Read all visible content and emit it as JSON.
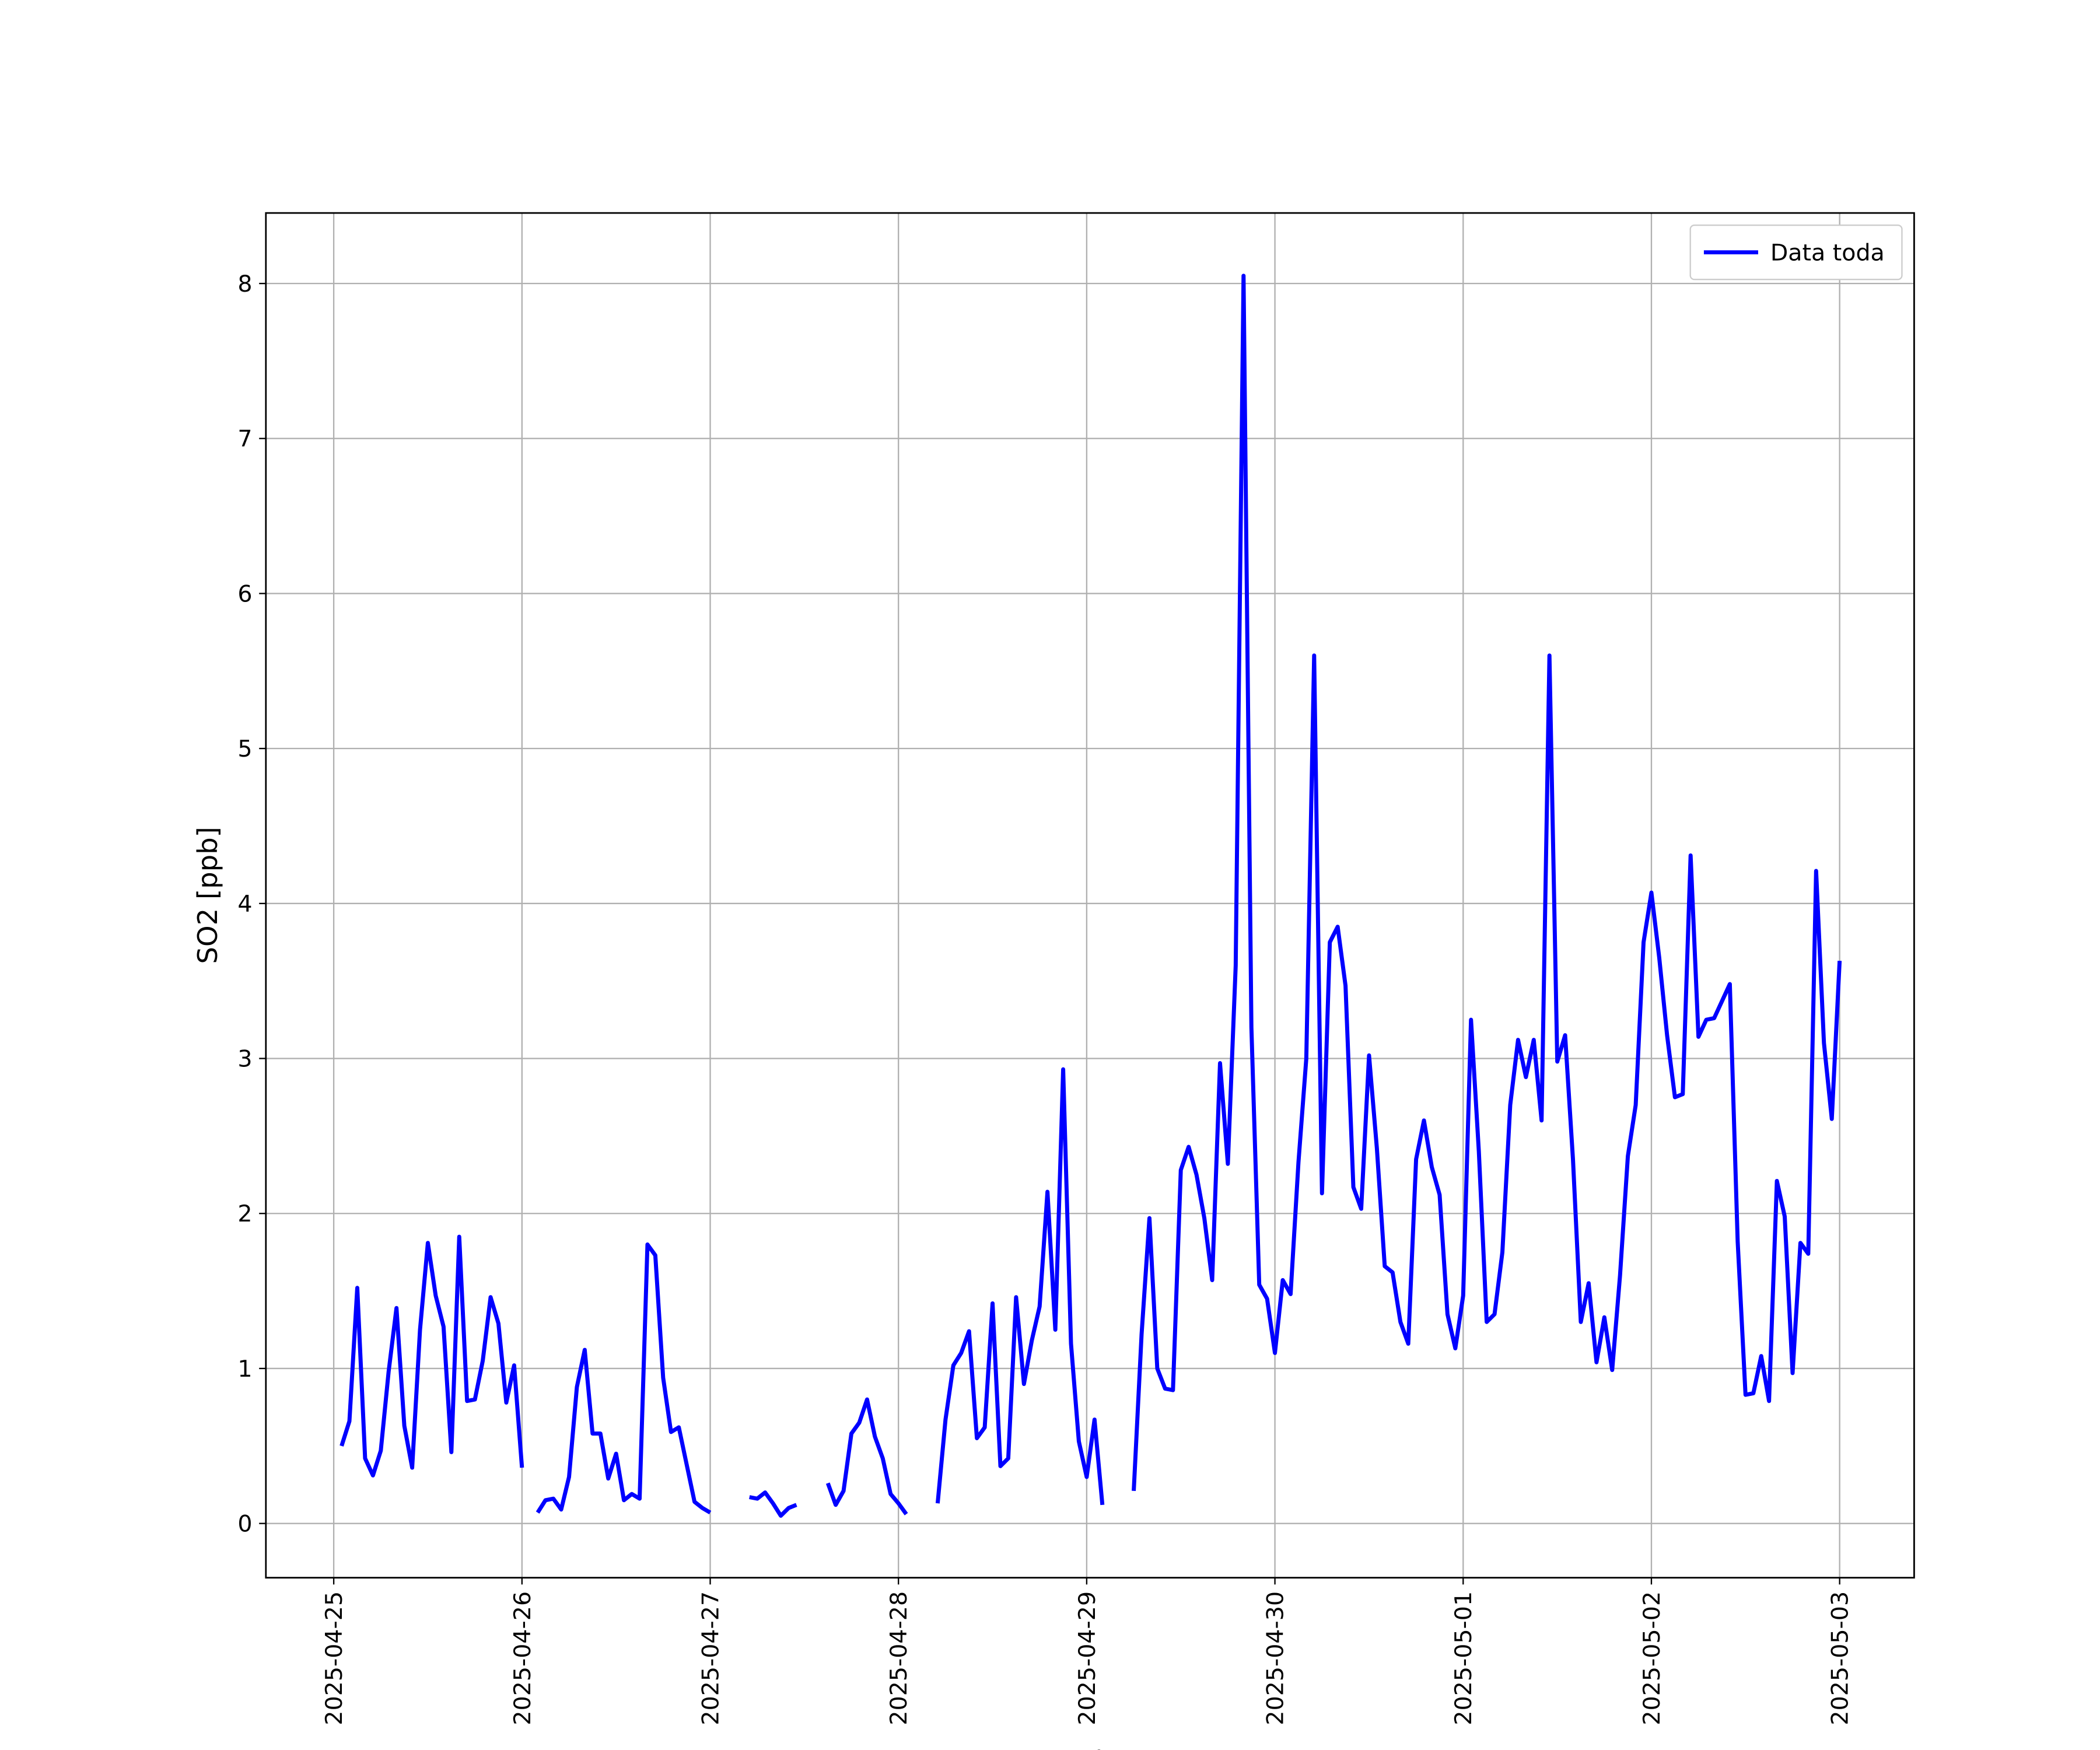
{
  "chart_data": {
    "type": "line",
    "xlabel": "Fecha",
    "ylabel": "SO2 [ppb]",
    "x": [
      1,
      2,
      3,
      4,
      5,
      6,
      7,
      8,
      9,
      10,
      11,
      12,
      13,
      14,
      15,
      16,
      17,
      18,
      19,
      20,
      21,
      22,
      23,
      24,
      25,
      26,
      27,
      28,
      29,
      30,
      31,
      32,
      33,
      34,
      35,
      36,
      37,
      38,
      39,
      40,
      41,
      42,
      43,
      44,
      45,
      46,
      47,
      48,
      49,
      50,
      51,
      52,
      53,
      54,
      55,
      56,
      57,
      58,
      59,
      60,
      61,
      62,
      63,
      64,
      65,
      66,
      67,
      68,
      69,
      70,
      71,
      72,
      73,
      74,
      75,
      76,
      77,
      78,
      79,
      80,
      81,
      82,
      83,
      84,
      85,
      86,
      87,
      88,
      89,
      90,
      91,
      92,
      93,
      94,
      95,
      96,
      97,
      98,
      99,
      100,
      101,
      102,
      103,
      104,
      105,
      106,
      107,
      108,
      109,
      110,
      111,
      112,
      113,
      114,
      115,
      116,
      117,
      118,
      119,
      120,
      121,
      122,
      123,
      124,
      125,
      126,
      127,
      128,
      129,
      130,
      131,
      132,
      133,
      134,
      135,
      136,
      137,
      138,
      139,
      140,
      141,
      142,
      143,
      144,
      145,
      146,
      147,
      148,
      149,
      150,
      151,
      152,
      153,
      154,
      155,
      156,
      157,
      158,
      159,
      160,
      161,
      162,
      163,
      164,
      165,
      166,
      167,
      168,
      169,
      170,
      171,
      172,
      173,
      174,
      175,
      176,
      177,
      178,
      179,
      180,
      181,
      182,
      183,
      184,
      185,
      186,
      187,
      188,
      189,
      190,
      191,
      192
    ],
    "series": [
      {
        "name": "Data toda",
        "color": "#0000ff",
        "values": [
          0.5,
          0.66,
          1.52,
          0.42,
          0.31,
          0.47,
          0.98,
          1.39,
          0.63,
          0.36,
          1.25,
          1.81,
          1.47,
          1.27,
          0.46,
          1.85,
          0.79,
          0.8,
          1.05,
          1.46,
          1.29,
          0.78,
          1.02,
          0.36,
          null,
          0.07,
          0.15,
          0.16,
          0.09,
          0.3,
          0.88,
          1.12,
          0.58,
          0.58,
          0.29,
          0.45,
          0.15,
          0.19,
          0.16,
          1.8,
          1.73,
          0.94,
          0.59,
          0.62,
          0.38,
          0.14,
          0.1,
          0.07,
          null,
          null,
          null,
          null,
          0.17,
          0.16,
          0.2,
          0.13,
          0.05,
          0.1,
          0.12,
          null,
          null,
          null,
          0.26,
          0.12,
          0.21,
          0.58,
          0.65,
          0.8,
          0.56,
          0.42,
          0.19,
          0.13,
          0.06,
          null,
          null,
          null,
          0.13,
          0.67,
          1.02,
          1.1,
          1.24,
          0.55,
          0.62,
          1.42,
          0.37,
          0.42,
          1.46,
          0.9,
          1.18,
          1.4,
          2.14,
          1.25,
          2.93,
          1.16,
          0.53,
          0.3,
          0.67,
          0.12,
          null,
          null,
          null,
          0.21,
          1.22,
          1.97,
          1.0,
          0.87,
          0.86,
          2.28,
          2.43,
          2.25,
          1.97,
          1.57,
          2.97,
          2.32,
          3.6,
          8.05,
          3.2,
          1.54,
          1.45,
          1.1,
          1.57,
          1.48,
          2.33,
          3.0,
          5.6,
          2.13,
          3.75,
          3.85,
          3.47,
          2.17,
          2.03,
          3.02,
          2.42,
          1.66,
          1.62,
          1.3,
          1.16,
          2.35,
          2.6,
          2.3,
          2.12,
          1.35,
          1.13,
          1.47,
          3.25,
          2.4,
          1.3,
          1.35,
          1.75,
          2.7,
          3.12,
          2.88,
          3.12,
          2.6,
          5.6,
          2.98,
          3.15,
          2.35,
          1.3,
          1.55,
          1.04,
          1.33,
          0.99,
          1.6,
          2.37,
          2.7,
          3.75,
          4.07,
          3.65,
          3.15,
          2.75,
          2.77,
          4.31,
          3.14,
          3.25,
          3.26,
          3.37,
          3.48,
          1.82,
          0.83,
          0.84,
          1.08,
          0.79,
          2.21,
          1.98,
          0.97,
          1.81,
          1.74,
          4.21,
          3.1,
          2.61,
          3.63
        ]
      }
    ],
    "xlim": [
      -8.65,
      201.5
    ],
    "xticks": [
      {
        "value": 0,
        "label": "2025-04-25"
      },
      {
        "value": 24,
        "label": "2025-04-26"
      },
      {
        "value": 48,
        "label": "2025-04-27"
      },
      {
        "value": 72,
        "label": "2025-04-28"
      },
      {
        "value": 96,
        "label": "2025-04-29"
      },
      {
        "value": 120,
        "label": "2025-04-30"
      },
      {
        "value": 144,
        "label": "2025-05-01"
      },
      {
        "value": 168,
        "label": "2025-05-02"
      },
      {
        "value": 192,
        "label": "2025-05-03"
      }
    ],
    "ylim": [
      -0.35,
      8.455
    ],
    "yticks": [
      0,
      1,
      2,
      3,
      4,
      5,
      6,
      7,
      8
    ],
    "grid": true,
    "legend": "upper right"
  }
}
